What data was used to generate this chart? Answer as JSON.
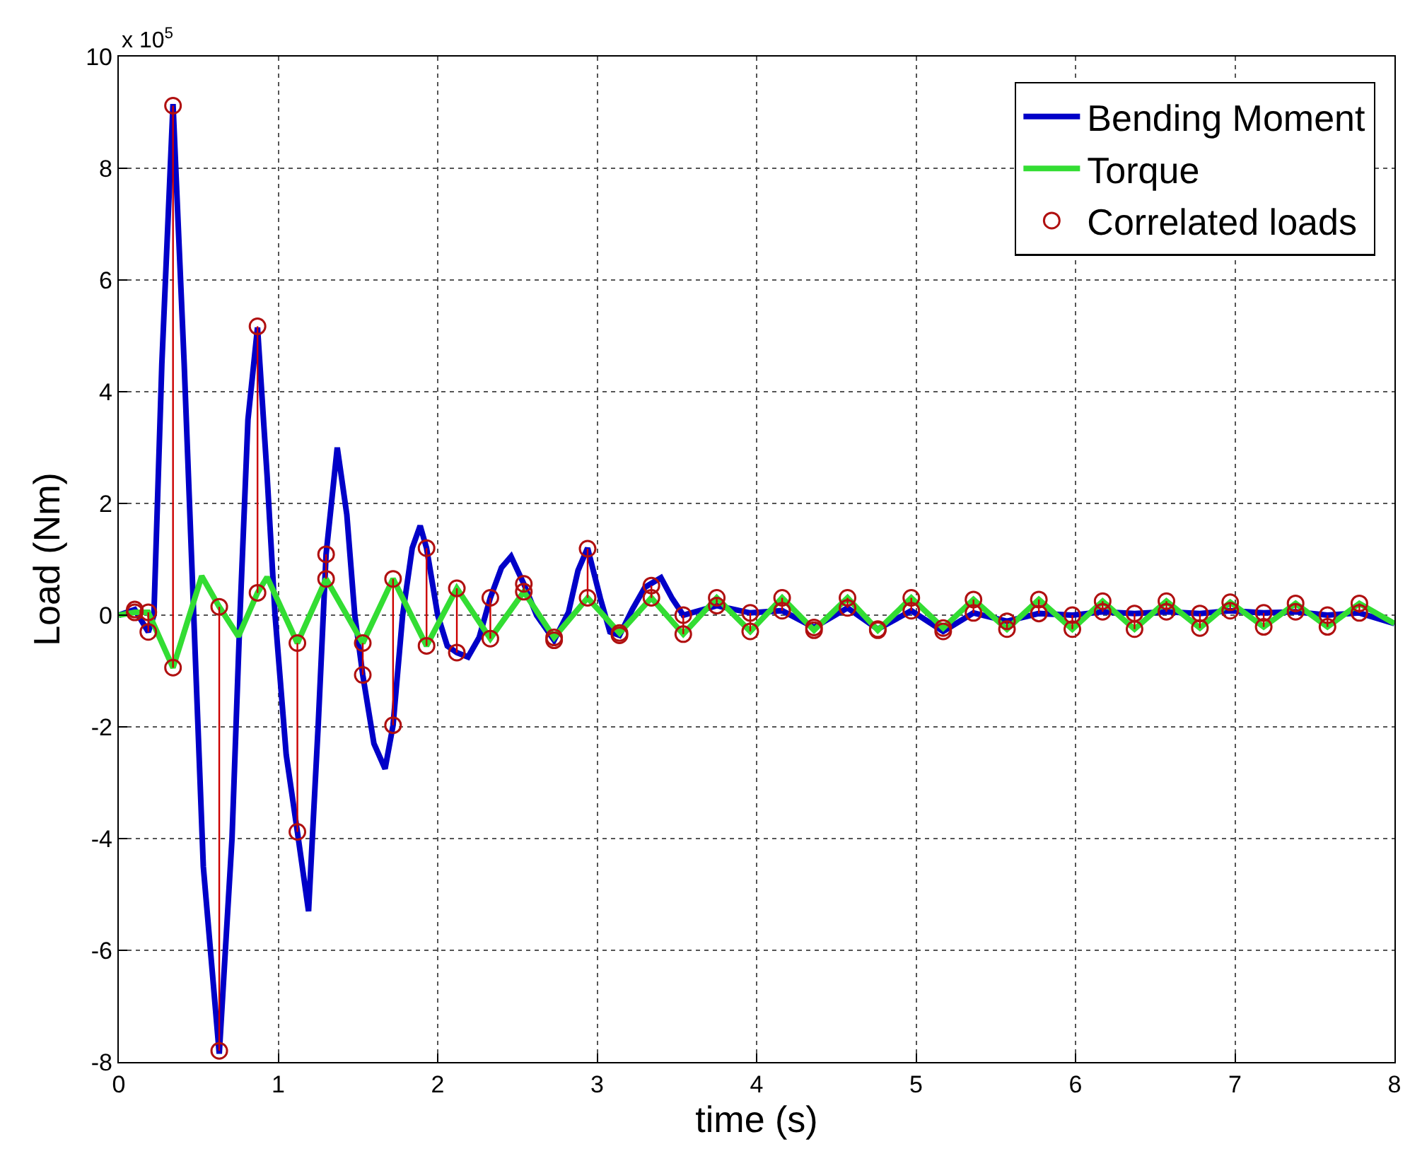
{
  "chart_data": {
    "type": "line",
    "xlabel": "time (s)",
    "ylabel": "Load (Nm)",
    "annotations": [
      "x 10$^{5}$"
    ],
    "xlim": [
      0,
      8
    ],
    "xticks": [
      0,
      1,
      2,
      3,
      4,
      5,
      6,
      7,
      8
    ],
    "ylim": [
      -8,
      10
    ],
    "yticks": [
      -8,
      -6,
      -4,
      -2,
      0,
      2,
      4,
      6,
      8,
      10
    ],
    "grid": true,
    "legend": "top right",
    "series": [
      {
        "name": "Bending Moment",
        "color": "#0000c8",
        "marker": "none",
        "x": [
          0,
          0.1,
          0.185,
          0.22,
          0.27,
          0.34,
          0.41,
          0.47,
          0.53,
          0.63,
          0.71,
          0.76,
          0.81,
          0.87,
          0.93,
          0.98,
          1.05,
          1.12,
          1.19,
          1.25,
          1.3,
          1.37,
          1.43,
          1.48,
          1.53,
          1.6,
          1.67,
          1.72,
          1.78,
          1.84,
          1.89,
          1.93,
          2.0,
          2.06,
          2.12,
          2.19,
          2.26,
          2.33,
          2.4,
          2.46,
          2.54,
          2.62,
          2.73,
          2.82,
          2.88,
          2.94,
          3.02,
          3.08,
          3.14,
          3.22,
          3.3,
          3.4,
          3.47,
          3.54,
          3.75,
          3.96,
          4.16,
          4.36,
          4.57,
          4.76,
          4.97,
          5.17,
          5.36,
          5.57,
          5.77,
          5.98,
          6.17,
          6.37,
          6.57,
          6.78,
          6.97,
          7.18,
          7.38,
          7.58,
          7.78,
          8.0
        ],
        "values": [
          0,
          0.1,
          -0.3,
          0,
          4.5,
          9.15,
          4.5,
          0,
          -4.5,
          -7.85,
          -4,
          0,
          3.5,
          5.15,
          2.5,
          0,
          -2.5,
          -3.88,
          -5.3,
          -2,
          1.09,
          3.0,
          1.8,
          0,
          -1.07,
          -2.3,
          -2.75,
          -1.97,
          0,
          1.2,
          1.6,
          1.2,
          0,
          -0.55,
          -0.67,
          -0.75,
          -0.4,
          0.31,
          0.85,
          1.05,
          0.56,
          0,
          -0.45,
          0.05,
          0.8,
          1.2,
          0.3,
          -0.3,
          -0.36,
          0.1,
          0.5,
          0.67,
          0.3,
          0.0,
          0.17,
          0.04,
          0.08,
          -0.22,
          0.13,
          -0.25,
          0.08,
          -0.29,
          0.04,
          -0.11,
          0.03,
          0.0,
          0.06,
          0.03,
          0.06,
          0.03,
          0.08,
          0.04,
          0.06,
          0.0,
          0.04,
          -0.15
        ]
      },
      {
        "name": "Torque",
        "color": "#33dd33",
        "marker": "none",
        "x": [
          0,
          0.1,
          0.185,
          0.34,
          0.52,
          0.63,
          0.75,
          0.87,
          0.93,
          1.12,
          1.3,
          1.53,
          1.72,
          1.93,
          2.12,
          2.33,
          2.54,
          2.73,
          2.94,
          3.14,
          3.34,
          3.54,
          3.75,
          3.96,
          4.16,
          4.36,
          4.57,
          4.76,
          4.97,
          5.17,
          5.36,
          5.57,
          5.77,
          5.98,
          6.17,
          6.37,
          6.57,
          6.78,
          6.97,
          7.18,
          7.38,
          7.58,
          7.78,
          8.0
        ],
        "values": [
          0,
          0.05,
          0.05,
          -0.94,
          0.7,
          0.15,
          -0.38,
          0.4,
          0.68,
          -0.5,
          0.65,
          -0.5,
          0.65,
          -0.55,
          0.48,
          -0.42,
          0.42,
          -0.4,
          0.31,
          -0.32,
          0.31,
          -0.34,
          0.31,
          -0.29,
          0.31,
          -0.27,
          0.31,
          -0.27,
          0.31,
          -0.23,
          0.28,
          -0.25,
          0.28,
          -0.25,
          0.25,
          -0.25,
          0.25,
          -0.23,
          0.23,
          -0.21,
          0.21,
          -0.21,
          0.21,
          -0.15
        ]
      },
      {
        "color": "#cc0000",
        "marker": "none",
        "x": [
          0.185,
          0.185,
          null,
          0.34,
          0.34,
          null,
          0.63,
          0.63,
          null,
          0.87,
          0.87,
          null,
          1.12,
          1.12,
          null,
          1.3,
          1.3,
          null,
          1.53,
          1.53,
          null,
          1.72,
          1.72,
          null,
          1.93,
          1.93,
          null,
          2.12,
          2.12,
          null,
          2.33,
          2.33,
          null,
          2.54,
          2.54,
          null,
          2.94,
          2.94,
          null,
          3.34,
          3.34,
          null,
          3.54,
          3.54,
          null,
          3.75,
          3.75,
          null,
          3.96,
          3.96,
          null,
          4.16,
          4.16,
          null,
          4.57,
          4.57,
          null,
          4.97,
          4.97,
          null,
          5.36,
          5.36,
          null,
          5.57,
          5.57,
          null,
          5.77,
          5.77,
          null,
          5.98,
          5.98,
          null,
          6.17,
          6.17,
          null,
          6.37,
          6.37,
          null,
          6.57,
          6.57,
          null,
          6.78,
          6.78,
          null,
          6.97,
          6.97,
          null,
          7.18,
          7.18,
          null,
          7.38,
          7.38,
          null,
          7.58,
          7.58,
          null,
          7.78,
          7.78,
          null
        ],
        "values": [
          -0.3,
          0.05,
          null,
          9.12,
          -0.94,
          null,
          -7.8,
          0.15,
          null,
          5.17,
          0.4,
          null,
          -3.88,
          -0.5,
          null,
          1.09,
          0.65,
          null,
          -1.07,
          -0.5,
          null,
          -1.97,
          0.65,
          null,
          1.2,
          -0.55,
          null,
          -0.67,
          0.48,
          null,
          0.31,
          -0.42,
          null,
          0.56,
          0.42,
          null,
          1.19,
          0.31,
          null,
          0.53,
          0.31,
          null,
          0.0,
          -0.34,
          null,
          0.17,
          0.31,
          null,
          0.04,
          -0.29,
          null,
          0.08,
          0.31,
          null,
          0.13,
          0.31,
          null,
          0.08,
          0.31,
          null,
          0.04,
          0.28,
          null,
          -0.11,
          -0.25,
          null,
          0.03,
          0.28,
          null,
          0.0,
          -0.25,
          null,
          0.06,
          0.25,
          null,
          0.03,
          -0.25,
          null,
          0.06,
          0.25,
          null,
          0.03,
          -0.23,
          null,
          0.08,
          0.23,
          null,
          0.04,
          -0.21,
          null,
          0.06,
          0.21,
          null,
          0.0,
          -0.21,
          null,
          0.04,
          0.21,
          null
        ]
      },
      {
        "name": "Correlated loads",
        "type": "scatter",
        "color": "#b01010",
        "marker": "circle",
        "x": [
          0.1,
          0.1,
          0.185,
          0.185,
          0.34,
          0.34,
          0.63,
          0.63,
          0.87,
          0.87,
          1.12,
          1.12,
          1.3,
          1.3,
          1.53,
          1.53,
          1.72,
          1.72,
          1.93,
          1.93,
          2.12,
          2.12,
          2.33,
          2.33,
          2.54,
          2.54,
          2.73,
          2.73,
          2.94,
          2.94,
          3.14,
          3.14,
          3.34,
          3.34,
          3.54,
          3.54,
          3.75,
          3.75,
          3.96,
          3.96,
          4.16,
          4.16,
          4.36,
          4.36,
          4.57,
          4.57,
          4.76,
          4.76,
          4.97,
          4.97,
          5.17,
          5.17,
          5.36,
          5.36,
          5.57,
          5.57,
          5.77,
          5.77,
          5.98,
          5.98,
          6.17,
          6.17,
          6.37,
          6.37,
          6.57,
          6.57,
          6.78,
          6.78,
          6.97,
          6.97,
          7.18,
          7.18,
          7.38,
          7.38,
          7.58,
          7.58,
          7.78,
          7.78
        ],
        "values": [
          0.1,
          0.05,
          -0.3,
          0.05,
          9.12,
          -0.94,
          -7.8,
          0.15,
          5.17,
          0.4,
          -3.88,
          -0.5,
          1.09,
          0.65,
          -1.07,
          -0.5,
          -1.97,
          0.65,
          1.2,
          -0.55,
          -0.67,
          0.48,
          0.31,
          -0.42,
          0.56,
          0.42,
          -0.45,
          -0.4,
          1.19,
          0.31,
          -0.36,
          -0.32,
          0.53,
          0.31,
          0.0,
          -0.34,
          0.17,
          0.31,
          0.04,
          -0.29,
          0.08,
          0.31,
          -0.22,
          -0.27,
          0.13,
          0.31,
          -0.25,
          -0.27,
          0.08,
          0.31,
          -0.29,
          -0.23,
          0.04,
          0.28,
          -0.11,
          -0.25,
          0.03,
          0.28,
          0.0,
          -0.25,
          0.06,
          0.25,
          0.03,
          -0.25,
          0.06,
          0.25,
          0.03,
          -0.23,
          0.08,
          0.23,
          0.04,
          -0.21,
          0.06,
          0.21,
          0.0,
          -0.21,
          0.04,
          0.21
        ]
      }
    ]
  }
}
